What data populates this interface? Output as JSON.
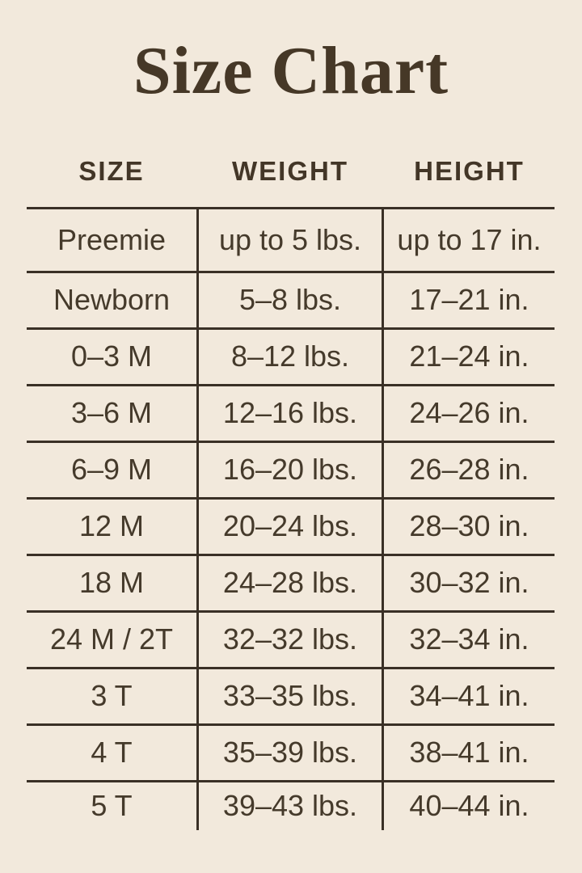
{
  "title": "Size Chart",
  "colors": {
    "background": "#f2e9dc",
    "ink": "#453a2b",
    "line": "#3a3026",
    "title_ink": "#463827"
  },
  "chart_data": {
    "type": "table",
    "title": "Size Chart",
    "columns": [
      "SIZE",
      "WEIGHT",
      "HEIGHT"
    ],
    "rows": [
      [
        "Preemie",
        "up to 5 lbs.",
        "up to 17 in."
      ],
      [
        "Newborn",
        "5–8 lbs.",
        "17–21 in."
      ],
      [
        "0–3 M",
        "8–12 lbs.",
        "21–24 in."
      ],
      [
        "3–6 M",
        "12–16 lbs.",
        "24–26 in."
      ],
      [
        "6–9 M",
        "16–20 lbs.",
        "26–28 in."
      ],
      [
        "12 M",
        "20–24 lbs.",
        "28–30 in."
      ],
      [
        "18 M",
        "24–28 lbs.",
        "30–32 in."
      ],
      [
        "24 M / 2T",
        "32–32 lbs.",
        "32–34 in."
      ],
      [
        "3 T",
        "33–35 lbs.",
        "34–41 in."
      ],
      [
        "4 T",
        "35–39 lbs.",
        "38–41 in."
      ],
      [
        "5 T",
        "39–43 lbs.",
        "40–44 in."
      ]
    ],
    "layout": {
      "grid": "horizontal rules between all rows, vertical rules flanking middle column only, no outer side borders, no bottom rule"
    }
  }
}
